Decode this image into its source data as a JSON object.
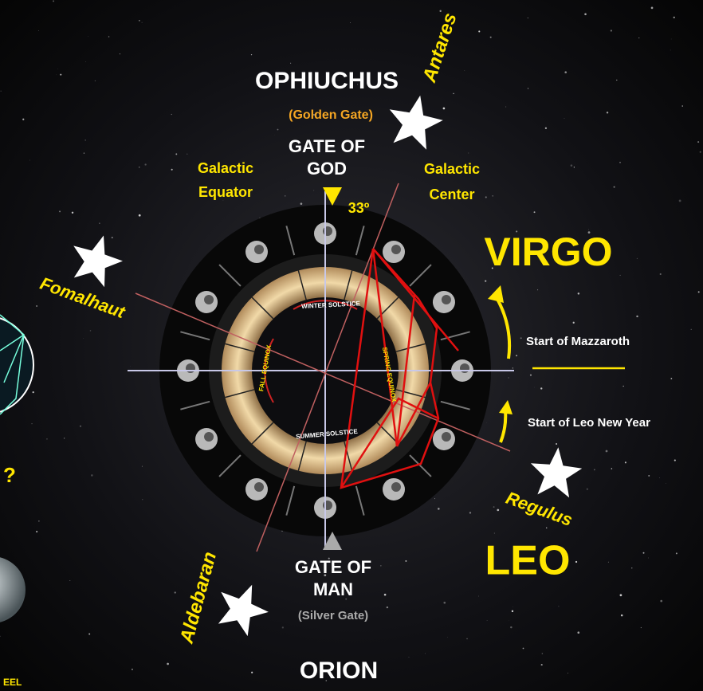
{
  "top": {
    "constellation": "OPHIUCHUS",
    "star": "Antares",
    "gate_name": "(Golden Gate)",
    "gate_line1": "GATE OF",
    "gate_line2": "GOD",
    "angle": "33º"
  },
  "galactic_equator": {
    "line1": "Galactic",
    "line2": "Equator"
  },
  "galactic_center": {
    "line1": "Galactic",
    "line2": "Center"
  },
  "right": {
    "virgo": "VIRGO",
    "mazzaroth": "Start of Mazzaroth",
    "leo_new_year": "Start of Leo New Year",
    "regulus": "Regulus",
    "leo": "LEO"
  },
  "left": {
    "fomalhaut": "Fomalhaut",
    "question": "?",
    "caption": "EEL"
  },
  "ring": {
    "winter": "WINTER SOLSTICE",
    "summer": "SUMMER SOLSTICE",
    "fall": "FALL EQUINOX",
    "spring": "SPRING EQUINOX"
  },
  "bottom": {
    "star": "Aldebaran",
    "gate_line1": "GATE OF",
    "gate_line2": "MAN",
    "gate_name": "(Silver Gate)",
    "constellation": "ORION"
  }
}
